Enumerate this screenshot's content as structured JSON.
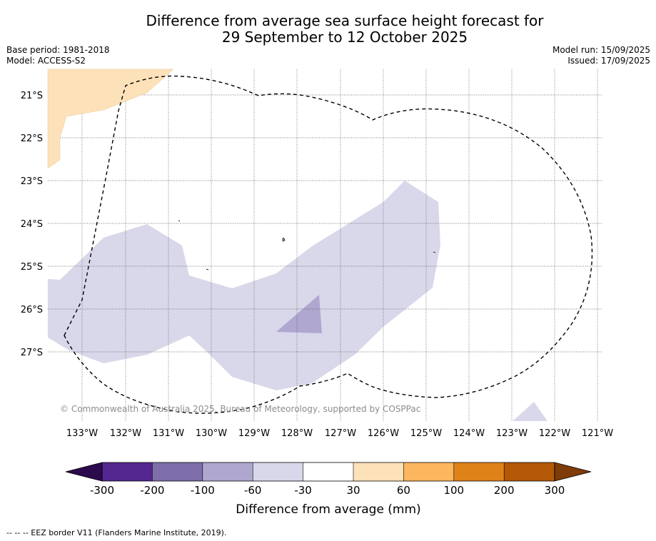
{
  "title": {
    "line1": "Difference from average sea surface height forecast for",
    "line2": "29 September to 12 October 2025"
  },
  "meta_left": {
    "base_period": "Base period: 1981-2018",
    "model": "Model: ACCESS-S2"
  },
  "meta_right": {
    "model_run": "Model run: 15/09/2025",
    "issued": "Issued: 17/09/2025"
  },
  "map": {
    "lat_labels": [
      "21°S",
      "22°S",
      "23°S",
      "24°S",
      "25°S",
      "26°S",
      "27°S"
    ],
    "lon_labels": [
      "133°W",
      "132°W",
      "131°W",
      "130°W",
      "129°W",
      "128°W",
      "127°W",
      "126°W",
      "125°W",
      "124°W",
      "123°W",
      "122°W",
      "121°W"
    ],
    "copyright": "© Commonwealth of Australia 2025, Bureau of Meteorology, supported by COSPPac"
  },
  "colorbar": {
    "label": "Difference from average (mm)",
    "ticks": [
      "-300",
      "-200",
      "-100",
      "-60",
      "-30",
      "30",
      "60",
      "100",
      "200",
      "300"
    ],
    "colors": {
      "below": "#2d0a4e",
      "bins": [
        "#54268f",
        "#7e6fab",
        "#afa7d0",
        "#d9d8ea",
        "#ffffff",
        "#fde1b9",
        "#fbb65e",
        "#e0821a",
        "#b35806"
      ],
      "above": "#7f3b08"
    }
  },
  "footer": "--  --  -- EEZ border V11 (Flanders Marine Institute, 2019)."
}
